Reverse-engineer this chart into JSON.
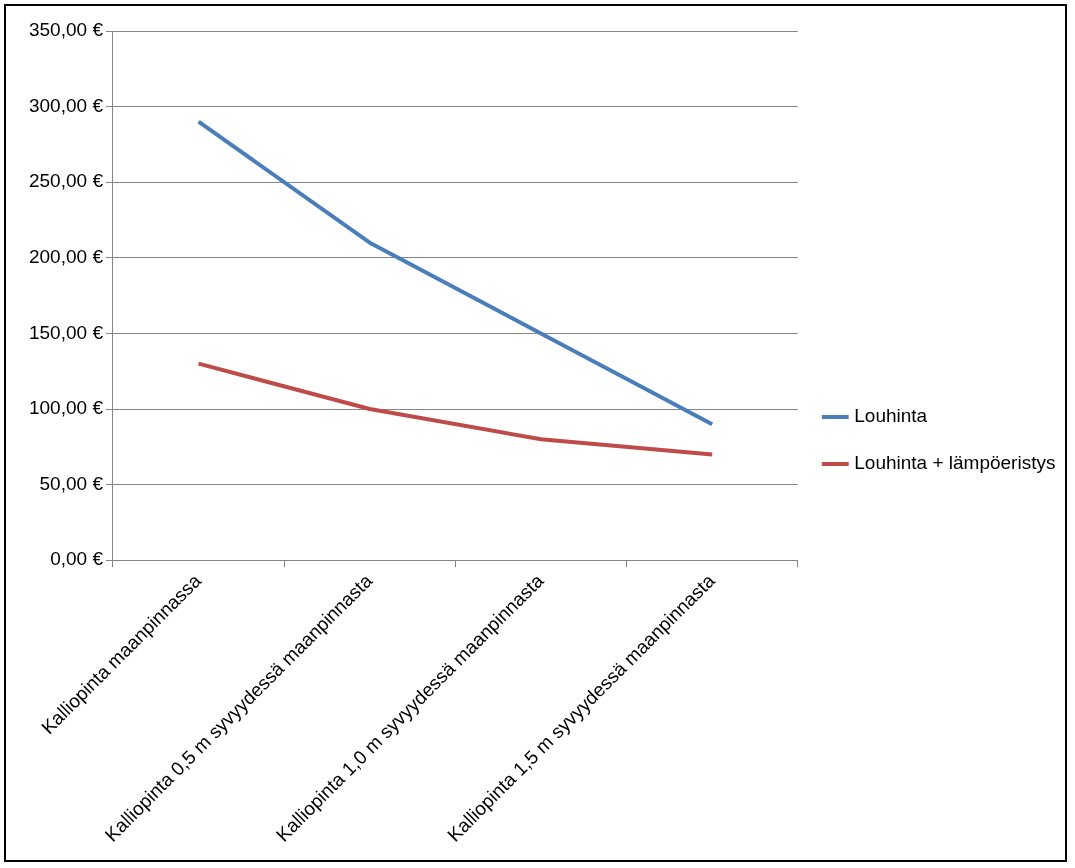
{
  "chart_data": {
    "type": "line",
    "categories": [
      "Kalliopinta maanpinnassa",
      "Kalliopinta 0,5 m syvyydessä maanpinnasta",
      "Kalliopinta 1,0 m syvyydessä maanpinnasta",
      "Kalliopinta 1,5 m syvyydessä maanpinnasta"
    ],
    "series": [
      {
        "name": "Louhinta",
        "color": "#4a7ebb",
        "values": [
          290,
          210,
          150,
          90
        ]
      },
      {
        "name": "Louhinta + lämpöeristys",
        "color": "#be4b48",
        "values": [
          130,
          100,
          80,
          70
        ]
      }
    ],
    "ylim": [
      0,
      350
    ],
    "yticks": [
      {
        "value": 0,
        "label": "0,00 €"
      },
      {
        "value": 50,
        "label": "50,00 €"
      },
      {
        "value": 100,
        "label": "100,00 €"
      },
      {
        "value": 150,
        "label": "150,00 €"
      },
      {
        "value": 200,
        "label": "200,00 €"
      },
      {
        "value": 250,
        "label": "250,00 €"
      },
      {
        "value": 300,
        "label": "300,00 €"
      },
      {
        "value": 350,
        "label": "350,00 €"
      }
    ],
    "grid": "y",
    "legend": "right",
    "marker": "none",
    "line_style": "solid"
  }
}
